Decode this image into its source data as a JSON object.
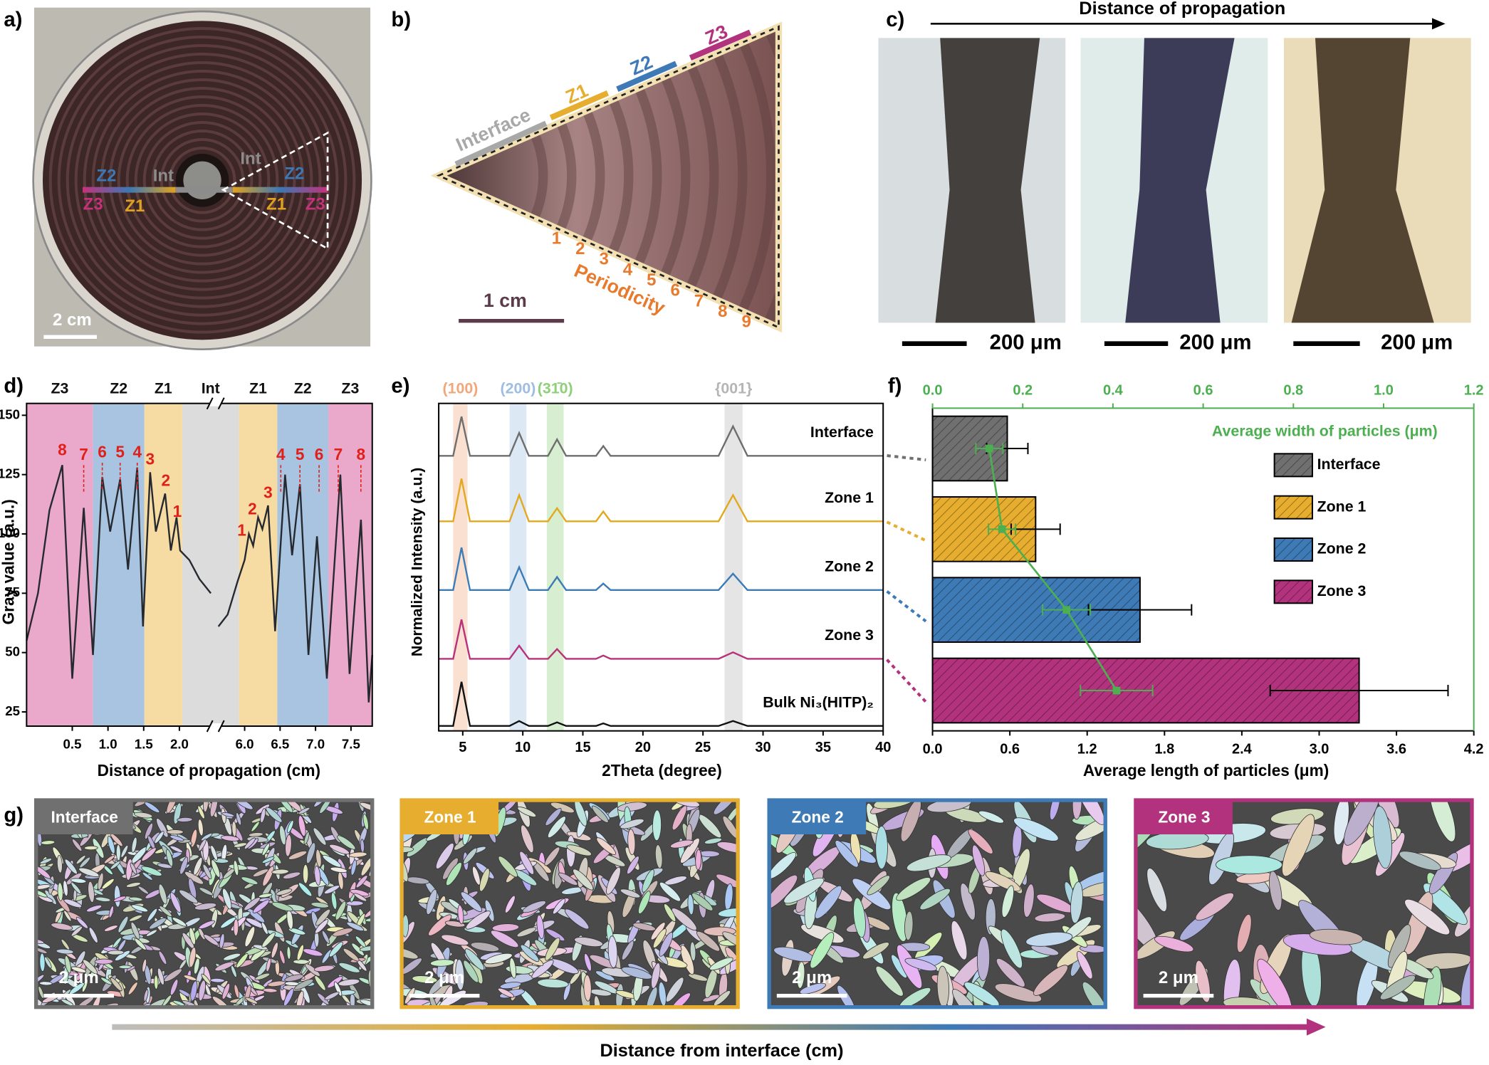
{
  "figure": {
    "a": {
      "label": "a)",
      "texts": [
        "Z2",
        "Int",
        "Z3",
        "Z1",
        "Int",
        "Z2",
        "Z1",
        "Z3"
      ],
      "scale": "2 cm"
    },
    "b": {
      "label": "b)",
      "zones": [
        "Interface",
        "Z1",
        "Z2",
        "Z3"
      ],
      "periods": [
        "1",
        "2",
        "3",
        "4",
        "5",
        "6",
        "7",
        "8",
        "9"
      ],
      "periodicity": "Periodicity",
      "scale": "1 cm"
    },
    "c": {
      "label": "c)",
      "arrow": "Distance of propagation",
      "scales": [
        "200 μm",
        "200 μm",
        "200 μm"
      ]
    },
    "g": {
      "label": "g)",
      "panels": [
        "Interface",
        "Zone 1",
        "Zone 2",
        "Zone 3"
      ],
      "colors": [
        "#707070",
        "#e6ad2e",
        "#3e7ab6",
        "#b2327d"
      ],
      "scales": [
        "2 μm",
        "2 μm",
        "2 μm",
        "2 μm"
      ],
      "arrow": "Distance from interface (cm)"
    }
  },
  "chart_data": [
    {
      "type": "line",
      "label": "d)",
      "xlabel": "Distance of propagation (cm)",
      "ylabel": "Gray value (a.u.)",
      "x_segments": [
        {
          "xlim": [
            -0.14,
            2.48
          ],
          "xticks": [
            0.5,
            {
              "value": 1,
              "label": "1.0"
            },
            1.5,
            {
              "value": 2,
              "label": "2.0"
            }
          ]
        },
        {
          "xlim": [
            5.63,
            7.8
          ],
          "xticks": [
            {
              "value": 6,
              "label": "6.0"
            },
            6.5,
            {
              "value": 7,
              "label": "7.0"
            },
            7.5
          ]
        }
      ],
      "ylim": [
        19,
        155
      ],
      "yticks": [
        25,
        50,
        75,
        100,
        125,
        150
      ],
      "regions": [
        {
          "label": "Z3",
          "from": -0.14,
          "to": 0.79,
          "color": "#eaa9cb"
        },
        {
          "label": "Z2",
          "from": 0.79,
          "to": 1.51,
          "color": "#a9c4e0"
        },
        {
          "label": "Z1",
          "from": 1.51,
          "to": 2.04,
          "color": "#f6dca2"
        },
        {
          "label": "Int",
          "from": 2.04,
          "to": 5.92,
          "color": "#dcdcdc"
        },
        {
          "label": "Z1",
          "from": 5.92,
          "to": 6.46,
          "color": "#f6dca2"
        },
        {
          "label": "Z2",
          "from": 6.46,
          "to": 7.18,
          "color": "#a9c4e0"
        },
        {
          "label": "Z3",
          "from": 7.18,
          "to": 7.8,
          "color": "#eaa9cb"
        }
      ],
      "x": [
        -0.14,
        0.02,
        0.18,
        0.36,
        0.5,
        0.66,
        0.79,
        0.92,
        1.03,
        1.17,
        1.28,
        1.41,
        1.49,
        1.59,
        1.67,
        1.8,
        1.88,
        1.96,
        2.01,
        2.14,
        2.28,
        2.44,
        5.63,
        5.76,
        5.9,
        6.0,
        6.06,
        6.12,
        6.19,
        6.25,
        6.33,
        6.43,
        6.57,
        6.67,
        6.78,
        6.9,
        7.02,
        7.16,
        7.35,
        7.48,
        7.64,
        7.75,
        7.8
      ],
      "values": [
        55,
        75,
        110,
        129,
        39,
        111,
        49,
        124,
        101,
        123,
        85,
        128,
        61,
        126,
        101,
        117,
        93,
        107,
        93,
        89,
        81,
        75,
        61,
        66,
        80,
        89,
        100,
        95,
        107,
        102,
        112,
        59,
        125,
        91,
        121,
        49,
        99,
        39,
        125,
        41,
        106,
        29,
        49
      ],
      "color": "#262a30",
      "annotation_color": "#e0201b",
      "annotations": [
        {
          "text": "8",
          "x": 0.36,
          "y": 135,
          "dashed": false
        },
        {
          "text": "7",
          "x": 0.66,
          "y": 133,
          "dashed": true
        },
        {
          "text": "6",
          "x": 0.92,
          "y": 134,
          "dashed": true
        },
        {
          "text": "5",
          "x": 1.17,
          "y": 134,
          "dashed": true
        },
        {
          "text": "4",
          "x": 1.41,
          "y": 134,
          "dashed": true
        },
        {
          "text": "3",
          "x": 1.59,
          "y": 131,
          "dashed": false
        },
        {
          "text": "2",
          "x": 1.81,
          "y": 122,
          "dashed": false
        },
        {
          "text": "1",
          "x": 1.97,
          "y": 109,
          "dashed": false
        },
        {
          "text": "1",
          "x": 5.96,
          "y": 101,
          "dashed": false
        },
        {
          "text": "2",
          "x": 6.11,
          "y": 110,
          "dashed": false
        },
        {
          "text": "3",
          "x": 6.33,
          "y": 117,
          "dashed": false
        },
        {
          "text": "4",
          "x": 6.51,
          "y": 133,
          "dashed": true
        },
        {
          "text": "5",
          "x": 6.78,
          "y": 133,
          "dashed": true
        },
        {
          "text": "6",
          "x": 7.05,
          "y": 133,
          "dashed": true
        },
        {
          "text": "7",
          "x": 7.32,
          "y": 133,
          "dashed": true
        },
        {
          "text": "8",
          "x": 7.64,
          "y": 133,
          "dashed": true
        }
      ]
    },
    {
      "type": "line",
      "label": "e)",
      "xlabel": "2Theta (degree)",
      "ylabel": "Normalized Intensity (a.u.)",
      "xlim": [
        3,
        40
      ],
      "xticks": [
        5,
        10,
        15,
        20,
        25,
        30,
        35,
        40
      ],
      "ylim": [
        0,
        100
      ],
      "bands": [
        {
          "label": "(100)",
          "from": 4.2,
          "to": 5.4,
          "color": "#f2a77a"
        },
        {
          "label": "(200)",
          "from": 8.9,
          "to": 10.3,
          "color": "#9dbde3"
        },
        {
          "label": "(31̄0)",
          "from": 12.0,
          "to": 13.4,
          "color": "#8fcf7a"
        },
        {
          "label": "{001}",
          "from": 26.8,
          "to": 28.3,
          "color": "#b5b5b5"
        }
      ],
      "x": [
        3,
        4.2,
        4.9,
        5.6,
        8.9,
        9.7,
        10.5,
        12.1,
        12.85,
        13.6,
        16.1,
        16.7,
        17.3,
        26.3,
        27.5,
        28.7,
        40
      ],
      "series": [
        {
          "name": "Interface",
          "color": "#6e6e6e",
          "values": [
            84,
            84,
            96,
            84,
            84,
            91,
            84,
            84,
            89,
            84,
            84,
            87,
            84,
            84,
            93,
            84,
            84
          ]
        },
        {
          "name": "Zone 1",
          "color": "#e2a91f",
          "values": [
            64,
            64,
            77,
            64,
            64,
            72,
            64,
            64,
            68,
            64,
            64,
            67,
            64,
            64,
            72,
            64,
            64
          ]
        },
        {
          "name": "Zone 2",
          "color": "#3d7bb5",
          "values": [
            43,
            43,
            56,
            43,
            43,
            50,
            43,
            43,
            47,
            43,
            43,
            45,
            43,
            43,
            48,
            43,
            43
          ]
        },
        {
          "name": "Zone 3",
          "color": "#b8317b",
          "values": [
            22,
            22,
            34,
            22,
            22,
            26,
            22,
            22,
            25,
            22,
            22,
            23,
            22,
            22,
            24,
            22,
            22
          ]
        },
        {
          "name": "Bulk Ni₃(HITP)₂",
          "color": "#111111",
          "values": [
            1.5,
            1.5,
            15,
            1.5,
            1.5,
            3,
            1.5,
            1.5,
            2.6,
            1.5,
            1.5,
            2.3,
            1.5,
            1.5,
            3,
            1.5,
            1.5
          ]
        }
      ]
    },
    {
      "type": "bar",
      "orientation": "horizontal",
      "label": "f)",
      "categories": [
        "Interface",
        "Zone 1",
        "Zone 2",
        "Zone 3"
      ],
      "colors": [
        "#707070",
        "#e6ad2e",
        "#3e7ab6",
        "#b2327d"
      ],
      "values": [
        0.58,
        0.8,
        1.61,
        3.31
      ],
      "errors": [
        0.16,
        0.19,
        0.4,
        0.69
      ],
      "xlabel": "Average length of particles (μm)",
      "xlim": [
        0,
        4.2
      ],
      "xticks": [
        {
          "value": 0,
          "label": "0.0"
        },
        0.6,
        1.2,
        1.8,
        2.4,
        {
          "value": 3,
          "label": "3.0"
        },
        3.6,
        4.2
      ],
      "x2label": "Average width of particles (μm)",
      "x2color": "#4caf50",
      "x2lim": [
        0,
        1.2
      ],
      "x2ticks": [
        {
          "value": 0,
          "label": "0.0"
        },
        0.2,
        0.4,
        0.6,
        0.8,
        {
          "value": 1,
          "label": "1.0"
        },
        1.2
      ],
      "width_values": [
        0.126,
        0.154,
        0.297,
        0.408
      ],
      "width_errors": [
        0.03,
        0.03,
        0.053,
        0.08
      ],
      "legend": "upper right"
    }
  ]
}
